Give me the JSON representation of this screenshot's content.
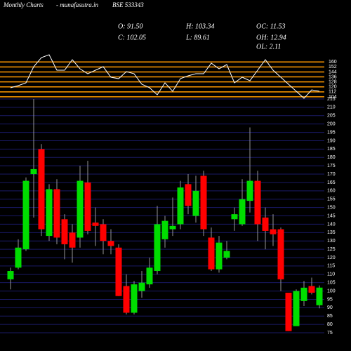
{
  "header": {
    "title": "Monthly Charts",
    "site": "- munafasutra.in",
    "symbol": "BSE 533343",
    "stats": [
      [
        "O: 91.50",
        "H: 103.34",
        "OC: 11.53"
      ],
      [
        "C: 102.05",
        "L: 89.61",
        "OH: 12.94"
      ],
      [
        null,
        null,
        "OL: 2.11"
      ]
    ]
  },
  "chart_data": [
    {
      "type": "line",
      "color": "#ffffff",
      "grid_color": "#ff9900",
      "values": [
        118.6,
        122,
        126.5,
        152.4,
        167.1,
        171.6,
        146.8,
        146.8,
        163.7,
        149,
        141.1,
        146.8,
        152.4,
        135.5,
        133.2,
        144.5,
        141.1,
        124.2,
        118.6,
        107.3,
        126.5,
        112.9,
        133.2,
        137.8,
        141.1,
        141.1,
        158.1,
        149,
        155.8,
        126.5,
        135.5,
        129.9,
        146.8,
        163.7,
        146.8,
        135.5,
        124.2,
        112.9,
        101.6,
        115.2,
        112.9
      ],
      "ylim": [
        96,
        175
      ],
      "yticks": [
        104,
        112,
        120,
        128,
        136,
        144,
        152,
        160
      ]
    },
    {
      "type": "candlestick",
      "up_color": "#00dd00",
      "down_color": "#ff0000",
      "grid_color": "#1a1a66",
      "open": [
        107,
        114,
        125,
        170,
        185,
        133,
        161,
        143,
        135,
        132,
        165,
        141,
        140,
        130,
        126,
        103,
        87,
        100,
        104,
        112,
        131,
        137,
        140,
        164,
        145,
        169,
        132,
        113,
        120,
        143,
        140,
        154,
        166,
        144,
        137,
        137,
        99,
        79,
        94,
        103,
        91.5
      ],
      "close": [
        112,
        126,
        166,
        173,
        137,
        161,
        132,
        128,
        126,
        166,
        136,
        139,
        130,
        127,
        97,
        87,
        104,
        105,
        114,
        140,
        142,
        139,
        162,
        151,
        160,
        137,
        113,
        129,
        124,
        146,
        155,
        166,
        140,
        136,
        134,
        107,
        76,
        100,
        102,
        99,
        102.05
      ],
      "high": [
        114,
        131,
        168,
        215,
        188,
        164,
        167,
        146,
        140,
        175,
        178,
        150,
        143,
        137,
        128,
        110,
        106,
        112,
        120,
        151,
        145,
        156,
        166,
        170,
        169,
        172,
        138,
        133,
        130,
        150,
        167,
        198,
        172,
        150,
        146,
        138,
        99,
        101,
        106,
        108,
        103.34
      ],
      "low": [
        101,
        113,
        124,
        144,
        133,
        130,
        128,
        119,
        117,
        126,
        134,
        127,
        122,
        122,
        97,
        86,
        86,
        96,
        102,
        110,
        126,
        133,
        137,
        146,
        141,
        133,
        112,
        111,
        119,
        136,
        139,
        147,
        130,
        125,
        127,
        100,
        76,
        79,
        91,
        98,
        89.61
      ],
      "ylim": [
        72.5,
        215
      ],
      "yticks": [
        75,
        80,
        85,
        90,
        95,
        100,
        105,
        110,
        115,
        120,
        125,
        130,
        135,
        140,
        145,
        150,
        155,
        160,
        165,
        170,
        175,
        180,
        185,
        190,
        195,
        200,
        205,
        210,
        215
      ]
    }
  ]
}
